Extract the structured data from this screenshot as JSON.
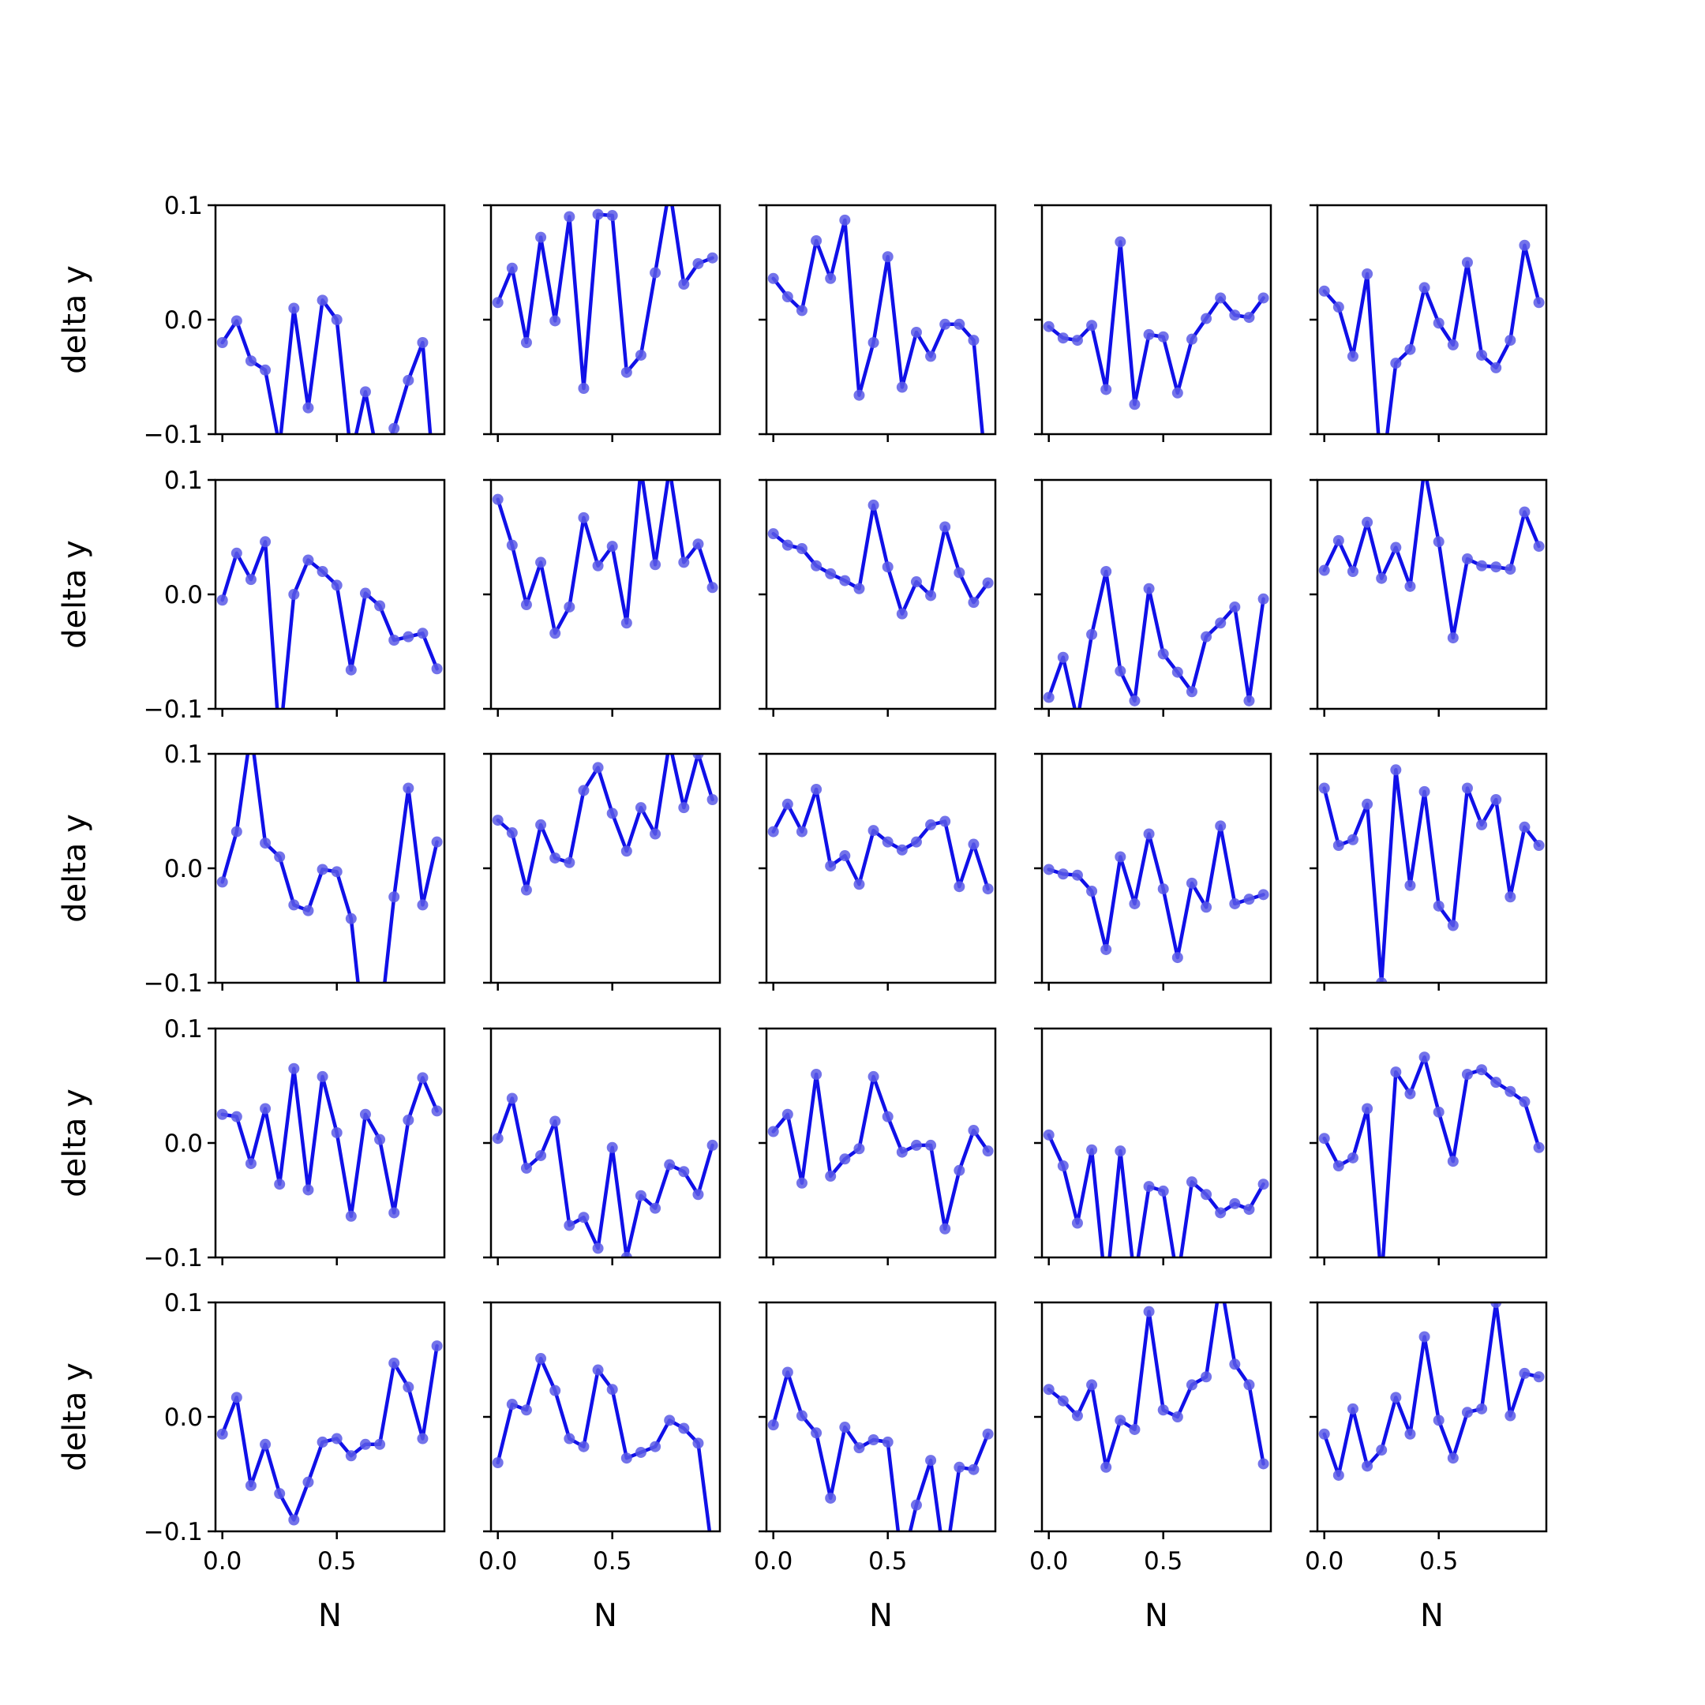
{
  "figure": {
    "xlabel": "N",
    "ylabel": "delta y",
    "line_color": "#1010e8",
    "marker_color": "#5a5ae6",
    "x_ticks": [
      "0.0",
      "0.5"
    ],
    "y_ticks": [
      "0.1",
      "0.0",
      "−0.1"
    ]
  },
  "chart_data": [
    {
      "type": "line",
      "xlabel": "",
      "ylabel": "delta y",
      "xlim": [
        -0.03,
        0.97
      ],
      "ylim": [
        -0.1,
        0.1
      ],
      "x": [
        0.0,
        0.0625,
        0.125,
        0.1875,
        0.25,
        0.3125,
        0.375,
        0.4375,
        0.5,
        0.5625,
        0.625,
        0.6875,
        0.75,
        0.8125,
        0.875,
        0.9375
      ],
      "y": [
        -0.02,
        -0.001,
        -0.036,
        -0.044,
        -0.111,
        0.01,
        -0.077,
        0.017,
        0.0,
        -0.12,
        -0.063,
        -0.13,
        -0.095,
        -0.053,
        -0.02,
        -0.17
      ]
    },
    {
      "type": "line",
      "xlabel": "",
      "ylabel": "",
      "xlim": [
        -0.03,
        0.97
      ],
      "ylim": [
        -0.1,
        0.1
      ],
      "x": [
        0.0,
        0.0625,
        0.125,
        0.1875,
        0.25,
        0.3125,
        0.375,
        0.4375,
        0.5,
        0.5625,
        0.625,
        0.6875,
        0.75,
        0.8125,
        0.875,
        0.9375
      ],
      "y": [
        0.015,
        0.045,
        -0.02,
        0.072,
        -0.001,
        0.09,
        -0.06,
        0.092,
        0.091,
        -0.046,
        -0.031,
        0.041,
        0.115,
        0.031,
        0.049,
        0.054
      ]
    },
    {
      "type": "line",
      "xlabel": "",
      "ylabel": "",
      "xlim": [
        -0.03,
        0.97
      ],
      "ylim": [
        -0.1,
        0.1
      ],
      "x": [
        0.0,
        0.0625,
        0.125,
        0.1875,
        0.25,
        0.3125,
        0.375,
        0.4375,
        0.5,
        0.5625,
        0.625,
        0.6875,
        0.75,
        0.8125,
        0.875,
        0.9375
      ],
      "y": [
        0.036,
        0.02,
        0.008,
        0.069,
        0.036,
        0.087,
        -0.066,
        -0.02,
        0.055,
        -0.059,
        -0.011,
        -0.032,
        -0.004,
        -0.004,
        -0.018,
        -0.15
      ]
    },
    {
      "type": "line",
      "xlabel": "",
      "ylabel": "",
      "xlim": [
        -0.03,
        0.97
      ],
      "ylim": [
        -0.1,
        0.1
      ],
      "x": [
        0.0,
        0.0625,
        0.125,
        0.1875,
        0.25,
        0.3125,
        0.375,
        0.4375,
        0.5,
        0.5625,
        0.625,
        0.6875,
        0.75,
        0.8125,
        0.875,
        0.9375
      ],
      "y": [
        -0.006,
        -0.016,
        -0.018,
        -0.005,
        -0.061,
        0.068,
        -0.074,
        -0.013,
        -0.015,
        -0.064,
        -0.017,
        0.001,
        0.019,
        0.004,
        0.002,
        0.019
      ]
    },
    {
      "type": "line",
      "xlabel": "",
      "ylabel": "",
      "xlim": [
        -0.03,
        0.97
      ],
      "ylim": [
        -0.1,
        0.1
      ],
      "x": [
        0.0,
        0.0625,
        0.125,
        0.1875,
        0.25,
        0.3125,
        0.375,
        0.4375,
        0.5,
        0.5625,
        0.625,
        0.6875,
        0.75,
        0.8125,
        0.875,
        0.9375
      ],
      "y": [
        0.025,
        0.011,
        -0.032,
        0.04,
        -0.14,
        -0.038,
        -0.026,
        0.028,
        -0.003,
        -0.022,
        0.05,
        -0.031,
        -0.042,
        -0.018,
        0.065,
        0.015
      ]
    },
    {
      "type": "line",
      "xlabel": "",
      "ylabel": "delta y",
      "xlim": [
        -0.03,
        0.97
      ],
      "ylim": [
        -0.1,
        0.1
      ],
      "x": [
        0.0,
        0.0625,
        0.125,
        0.1875,
        0.25,
        0.3125,
        0.375,
        0.4375,
        0.5,
        0.5625,
        0.625,
        0.6875,
        0.75,
        0.8125,
        0.875,
        0.9375
      ],
      "y": [
        -0.005,
        0.036,
        0.013,
        0.046,
        -0.13,
        0.0,
        0.03,
        0.02,
        0.008,
        -0.066,
        0.001,
        -0.01,
        -0.04,
        -0.037,
        -0.034,
        -0.065
      ]
    },
    {
      "type": "line",
      "xlabel": "",
      "ylabel": "",
      "xlim": [
        -0.03,
        0.97
      ],
      "ylim": [
        -0.1,
        0.1
      ],
      "x": [
        0.0,
        0.0625,
        0.125,
        0.1875,
        0.25,
        0.3125,
        0.375,
        0.4375,
        0.5,
        0.5625,
        0.625,
        0.6875,
        0.75,
        0.8125,
        0.875,
        0.9375
      ],
      "y": [
        0.083,
        0.043,
        -0.009,
        0.028,
        -0.034,
        -0.011,
        0.067,
        0.025,
        0.042,
        -0.025,
        0.11,
        0.026,
        0.11,
        0.028,
        0.044,
        0.006
      ]
    },
    {
      "type": "line",
      "xlabel": "",
      "ylabel": "",
      "xlim": [
        -0.03,
        0.97
      ],
      "ylim": [
        -0.1,
        0.1
      ],
      "x": [
        0.0,
        0.0625,
        0.125,
        0.1875,
        0.25,
        0.3125,
        0.375,
        0.4375,
        0.5,
        0.5625,
        0.625,
        0.6875,
        0.75,
        0.8125,
        0.875,
        0.9375
      ],
      "y": [
        0.053,
        0.043,
        0.04,
        0.025,
        0.018,
        0.012,
        0.005,
        0.078,
        0.024,
        -0.017,
        0.011,
        -0.001,
        0.059,
        0.019,
        -0.007,
        0.01
      ]
    },
    {
      "type": "line",
      "xlabel": "",
      "ylabel": "",
      "xlim": [
        -0.03,
        0.97
      ],
      "ylim": [
        -0.1,
        0.1
      ],
      "x": [
        0.0,
        0.0625,
        0.125,
        0.1875,
        0.25,
        0.3125,
        0.375,
        0.4375,
        0.5,
        0.5625,
        0.625,
        0.6875,
        0.75,
        0.8125,
        0.875,
        0.9375
      ],
      "y": [
        -0.09,
        -0.055,
        -0.11,
        -0.035,
        0.02,
        -0.067,
        -0.093,
        0.005,
        -0.052,
        -0.068,
        -0.085,
        -0.037,
        -0.025,
        -0.011,
        -0.093,
        -0.004
      ]
    },
    {
      "type": "line",
      "xlabel": "",
      "ylabel": "",
      "xlim": [
        -0.03,
        0.97
      ],
      "ylim": [
        -0.1,
        0.1
      ],
      "x": [
        0.0,
        0.0625,
        0.125,
        0.1875,
        0.25,
        0.3125,
        0.375,
        0.4375,
        0.5,
        0.5625,
        0.625,
        0.6875,
        0.75,
        0.8125,
        0.875,
        0.9375
      ],
      "y": [
        0.021,
        0.047,
        0.02,
        0.063,
        0.014,
        0.041,
        0.007,
        0.11,
        0.046,
        -0.038,
        0.031,
        0.025,
        0.024,
        0.022,
        0.072,
        0.042
      ]
    },
    {
      "type": "line",
      "xlabel": "",
      "ylabel": "delta y",
      "xlim": [
        -0.03,
        0.97
      ],
      "ylim": [
        -0.1,
        0.1
      ],
      "x": [
        0.0,
        0.0625,
        0.125,
        0.1875,
        0.25,
        0.3125,
        0.375,
        0.4375,
        0.5,
        0.5625,
        0.625,
        0.6875,
        0.75,
        0.8125,
        0.875,
        0.9375
      ],
      "y": [
        -0.012,
        0.032,
        0.12,
        0.022,
        0.01,
        -0.032,
        -0.037,
        -0.001,
        -0.003,
        -0.044,
        -0.16,
        -0.14,
        -0.025,
        0.07,
        -0.032,
        0.023
      ]
    },
    {
      "type": "line",
      "xlabel": "",
      "ylabel": "",
      "xlim": [
        -0.03,
        0.97
      ],
      "ylim": [
        -0.1,
        0.1
      ],
      "x": [
        0.0,
        0.0625,
        0.125,
        0.1875,
        0.25,
        0.3125,
        0.375,
        0.4375,
        0.5,
        0.5625,
        0.625,
        0.6875,
        0.75,
        0.8125,
        0.875,
        0.9375
      ],
      "y": [
        0.042,
        0.031,
        -0.019,
        0.038,
        0.009,
        0.005,
        0.068,
        0.088,
        0.048,
        0.015,
        0.053,
        0.03,
        0.11,
        0.053,
        0.1,
        0.06
      ]
    },
    {
      "type": "line",
      "xlabel": "",
      "ylabel": "",
      "xlim": [
        -0.03,
        0.97
      ],
      "ylim": [
        -0.1,
        0.1
      ],
      "x": [
        0.0,
        0.0625,
        0.125,
        0.1875,
        0.25,
        0.3125,
        0.375,
        0.4375,
        0.5,
        0.5625,
        0.625,
        0.6875,
        0.75,
        0.8125,
        0.875,
        0.9375
      ],
      "y": [
        0.032,
        0.056,
        0.032,
        0.069,
        0.002,
        0.011,
        -0.014,
        0.033,
        0.023,
        0.016,
        0.023,
        0.038,
        0.041,
        -0.016,
        0.021,
        -0.018
      ]
    },
    {
      "type": "line",
      "xlabel": "",
      "ylabel": "",
      "xlim": [
        -0.03,
        0.97
      ],
      "ylim": [
        -0.1,
        0.1
      ],
      "x": [
        0.0,
        0.0625,
        0.125,
        0.1875,
        0.25,
        0.3125,
        0.375,
        0.4375,
        0.5,
        0.5625,
        0.625,
        0.6875,
        0.75,
        0.8125,
        0.875,
        0.9375
      ],
      "y": [
        -0.001,
        -0.005,
        -0.006,
        -0.02,
        -0.071,
        0.01,
        -0.031,
        0.03,
        -0.018,
        -0.078,
        -0.013,
        -0.034,
        0.037,
        -0.031,
        -0.027,
        -0.023
      ]
    },
    {
      "type": "line",
      "xlabel": "",
      "ylabel": "",
      "xlim": [
        -0.03,
        0.97
      ],
      "ylim": [
        -0.1,
        0.1
      ],
      "x": [
        0.0,
        0.0625,
        0.125,
        0.1875,
        0.25,
        0.3125,
        0.375,
        0.4375,
        0.5,
        0.5625,
        0.625,
        0.6875,
        0.75,
        0.8125,
        0.875,
        0.9375
      ],
      "y": [
        0.07,
        0.02,
        0.025,
        0.056,
        -0.1,
        0.086,
        -0.015,
        0.067,
        -0.033,
        -0.05,
        0.07,
        0.038,
        0.06,
        -0.025,
        0.036,
        0.02
      ]
    },
    {
      "type": "line",
      "xlabel": "",
      "ylabel": "delta y",
      "xlim": [
        -0.03,
        0.97
      ],
      "ylim": [
        -0.1,
        0.1
      ],
      "x": [
        0.0,
        0.0625,
        0.125,
        0.1875,
        0.25,
        0.3125,
        0.375,
        0.4375,
        0.5,
        0.5625,
        0.625,
        0.6875,
        0.75,
        0.8125,
        0.875,
        0.9375
      ],
      "y": [
        0.025,
        0.023,
        -0.018,
        0.03,
        -0.036,
        0.065,
        -0.041,
        0.058,
        0.009,
        -0.064,
        0.025,
        0.003,
        -0.061,
        0.02,
        0.057,
        0.028
      ]
    },
    {
      "type": "line",
      "xlabel": "",
      "ylabel": "",
      "xlim": [
        -0.03,
        0.97
      ],
      "ylim": [
        -0.1,
        0.1
      ],
      "x": [
        0.0,
        0.0625,
        0.125,
        0.1875,
        0.25,
        0.3125,
        0.375,
        0.4375,
        0.5,
        0.5625,
        0.625,
        0.6875,
        0.75,
        0.8125,
        0.875,
        0.9375
      ],
      "y": [
        0.004,
        0.039,
        -0.022,
        -0.011,
        0.019,
        -0.072,
        -0.065,
        -0.092,
        -0.004,
        -0.1,
        -0.046,
        -0.057,
        -0.019,
        -0.025,
        -0.045,
        -0.002
      ]
    },
    {
      "type": "line",
      "xlabel": "",
      "ylabel": "",
      "xlim": [
        -0.03,
        0.97
      ],
      "ylim": [
        -0.1,
        0.1
      ],
      "x": [
        0.0,
        0.0625,
        0.125,
        0.1875,
        0.25,
        0.3125,
        0.375,
        0.4375,
        0.5,
        0.5625,
        0.625,
        0.6875,
        0.75,
        0.8125,
        0.875,
        0.9375
      ],
      "y": [
        0.01,
        0.025,
        -0.035,
        0.06,
        -0.029,
        -0.014,
        -0.005,
        0.058,
        0.023,
        -0.008,
        -0.002,
        -0.002,
        -0.075,
        -0.024,
        0.011,
        -0.007
      ]
    },
    {
      "type": "line",
      "xlabel": "",
      "ylabel": "",
      "xlim": [
        -0.03,
        0.97
      ],
      "ylim": [
        -0.1,
        0.1
      ],
      "x": [
        0.0,
        0.0625,
        0.125,
        0.1875,
        0.25,
        0.3125,
        0.375,
        0.4375,
        0.5,
        0.5625,
        0.625,
        0.6875,
        0.75,
        0.8125,
        0.875,
        0.9375
      ],
      "y": [
        0.007,
        -0.02,
        -0.07,
        -0.006,
        -0.13,
        -0.007,
        -0.12,
        -0.038,
        -0.042,
        -0.12,
        -0.034,
        -0.045,
        -0.061,
        -0.053,
        -0.058,
        -0.036
      ]
    },
    {
      "type": "line",
      "xlabel": "",
      "ylabel": "",
      "xlim": [
        -0.03,
        0.97
      ],
      "ylim": [
        -0.1,
        0.1
      ],
      "x": [
        0.0,
        0.0625,
        0.125,
        0.1875,
        0.25,
        0.3125,
        0.375,
        0.4375,
        0.5,
        0.5625,
        0.625,
        0.6875,
        0.75,
        0.8125,
        0.875,
        0.9375
      ],
      "y": [
        0.004,
        -0.02,
        -0.013,
        0.03,
        -0.12,
        0.062,
        0.043,
        0.075,
        0.027,
        -0.016,
        0.06,
        0.064,
        0.053,
        0.045,
        0.036,
        -0.004
      ]
    },
    {
      "type": "line",
      "xlabel": "N",
      "ylabel": "delta y",
      "xlim": [
        -0.03,
        0.97
      ],
      "ylim": [
        -0.1,
        0.1
      ],
      "x": [
        0.0,
        0.0625,
        0.125,
        0.1875,
        0.25,
        0.3125,
        0.375,
        0.4375,
        0.5,
        0.5625,
        0.625,
        0.6875,
        0.75,
        0.8125,
        0.875,
        0.9375
      ],
      "y": [
        -0.015,
        0.017,
        -0.06,
        -0.024,
        -0.067,
        -0.09,
        -0.057,
        -0.022,
        -0.019,
        -0.034,
        -0.024,
        -0.024,
        0.047,
        0.026,
        -0.019,
        0.062
      ]
    },
    {
      "type": "line",
      "xlabel": "N",
      "ylabel": "",
      "xlim": [
        -0.03,
        0.97
      ],
      "ylim": [
        -0.1,
        0.1
      ],
      "x": [
        0.0,
        0.0625,
        0.125,
        0.1875,
        0.25,
        0.3125,
        0.375,
        0.4375,
        0.5,
        0.5625,
        0.625,
        0.6875,
        0.75,
        0.8125,
        0.875,
        0.9375
      ],
      "y": [
        -0.04,
        0.011,
        0.006,
        0.051,
        0.023,
        -0.019,
        -0.026,
        0.041,
        0.024,
        -0.036,
        -0.031,
        -0.026,
        -0.003,
        -0.01,
        -0.023,
        -0.12
      ]
    },
    {
      "type": "line",
      "xlabel": "N",
      "ylabel": "",
      "xlim": [
        -0.03,
        0.97
      ],
      "ylim": [
        -0.1,
        0.1
      ],
      "x": [
        0.0,
        0.0625,
        0.125,
        0.1875,
        0.25,
        0.3125,
        0.375,
        0.4375,
        0.5,
        0.5625,
        0.625,
        0.6875,
        0.75,
        0.8125,
        0.875,
        0.9375
      ],
      "y": [
        -0.007,
        0.039,
        0.001,
        -0.014,
        -0.071,
        -0.009,
        -0.027,
        -0.02,
        -0.022,
        -0.13,
        -0.077,
        -0.038,
        -0.13,
        -0.044,
        -0.046,
        -0.015
      ]
    },
    {
      "type": "line",
      "xlabel": "N",
      "ylabel": "",
      "xlim": [
        -0.03,
        0.97
      ],
      "ylim": [
        -0.1,
        0.1
      ],
      "x": [
        0.0,
        0.0625,
        0.125,
        0.1875,
        0.25,
        0.3125,
        0.375,
        0.4375,
        0.5,
        0.5625,
        0.625,
        0.6875,
        0.75,
        0.8125,
        0.875,
        0.9375
      ],
      "y": [
        0.024,
        0.014,
        0.001,
        0.028,
        -0.044,
        -0.003,
        -0.011,
        0.092,
        0.006,
        0.0,
        0.028,
        0.035,
        0.12,
        0.046,
        0.028,
        -0.041
      ]
    },
    {
      "type": "line",
      "xlabel": "N",
      "ylabel": "",
      "xlim": [
        -0.03,
        0.97
      ],
      "ylim": [
        -0.1,
        0.1
      ],
      "x": [
        0.0,
        0.0625,
        0.125,
        0.1875,
        0.25,
        0.3125,
        0.375,
        0.4375,
        0.5,
        0.5625,
        0.625,
        0.6875,
        0.75,
        0.8125,
        0.875,
        0.9375
      ],
      "y": [
        -0.015,
        -0.051,
        0.007,
        -0.043,
        -0.029,
        0.017,
        -0.015,
        0.07,
        -0.003,
        -0.036,
        0.004,
        0.007,
        0.1,
        0.001,
        0.038,
        0.035
      ]
    }
  ]
}
